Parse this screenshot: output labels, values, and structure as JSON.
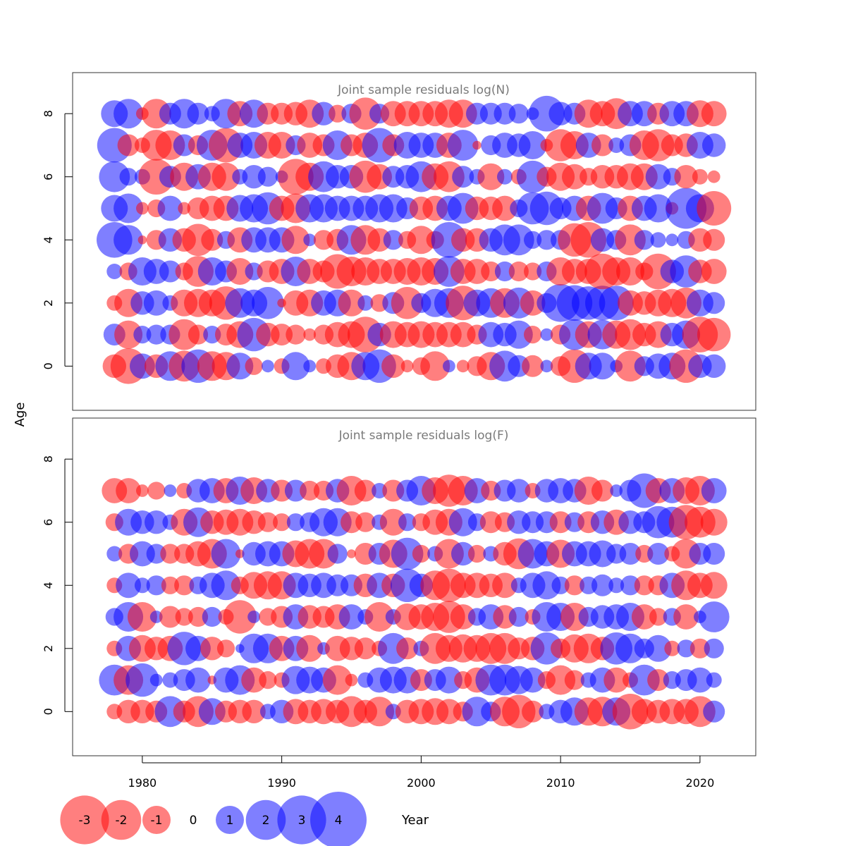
{
  "chart_data": {
    "type": "scatter",
    "subtype": "bubble",
    "xlabel": "Year",
    "ylabel": "Age",
    "xlim": [
      1975,
      2024
    ],
    "x_ticks": [
      1980,
      1990,
      2000,
      2010,
      2020
    ],
    "colors": {
      "positive": "#0000ff",
      "negative": "#ff0000",
      "opacity": 0.5
    },
    "legend": {
      "placement": "bottom-left",
      "items": [
        {
          "label": "-3",
          "value": -3
        },
        {
          "label": "-2",
          "value": -2
        },
        {
          "label": "-1",
          "value": -1
        },
        {
          "label": "0",
          "value": 0
        },
        {
          "label": "1",
          "value": 1
        },
        {
          "label": "2",
          "value": 2
        },
        {
          "label": "3",
          "value": 3
        },
        {
          "label": "4",
          "value": 4
        }
      ]
    },
    "panels": [
      {
        "title": "Joint sample residuals log(N)",
        "ylim": [
          -1.4,
          9.3
        ],
        "y_ticks": [
          0,
          2,
          4,
          6,
          8
        ],
        "years": [
          1978,
          1979,
          1980,
          1981,
          1982,
          1983,
          1984,
          1985,
          1986,
          1987,
          1988,
          1989,
          1990,
          1991,
          1992,
          1993,
          1994,
          1995,
          1996,
          1997,
          1998,
          1999,
          2000,
          2001,
          2002,
          2003,
          2004,
          2005,
          2006,
          2007,
          2008,
          2009,
          2010,
          2011,
          2012,
          2013,
          2014,
          2015,
          2016,
          2017,
          2018,
          2019,
          2020,
          2021
        ],
        "ages": [
          0,
          1,
          2,
          3,
          4,
          5,
          6,
          7,
          8
        ],
        "residuals": [
          [
            -0.7,
            -1.6,
            0.8,
            -0.7,
            1.1,
            -1.2,
            1.4,
            -1.1,
            -1.0,
            0.9,
            -0.4,
            0.2,
            -0.3,
            1.0,
            0.2,
            -0.3,
            -0.7,
            -1.0,
            1.0,
            1.4,
            -0.7,
            -0.2,
            -0.4,
            -1.1,
            0.2,
            -0.2,
            -0.5,
            -1.0,
            1.2,
            0.6,
            -0.6,
            0.2,
            -0.5,
            -1.4,
            0.9,
            0.9,
            0.2,
            -1.2,
            0.5,
            0.8,
            0.9,
            -1.4,
            0.7,
            0.7
          ],
          [
            0.6,
            -1.0,
            0.4,
            0.5,
            0.5,
            -1.2,
            -0.5,
            0.4,
            -0.6,
            -0.9,
            1.4,
            -0.7,
            -0.6,
            -0.5,
            -0.2,
            -0.5,
            -0.8,
            -0.9,
            -1.6,
            0.7,
            -0.9,
            -0.8,
            -0.9,
            -0.8,
            -0.8,
            -0.8,
            -0.5,
            0.8,
            0.7,
            1.0,
            -0.4,
            0.2,
            -0.5,
            1.2,
            -0.9,
            1.1,
            -1.0,
            -1.2,
            -0.7,
            -0.9,
            0.7,
            1.0,
            -1.6,
            -1.4
          ],
          [
            -0.3,
            -1.0,
            0.7,
            0.8,
            0.3,
            -0.9,
            -1.0,
            -0.9,
            -1.4,
            1.1,
            0.9,
            1.3,
            -0.1,
            -0.8,
            -0.9,
            0.8,
            0.9,
            -0.9,
            0.3,
            -0.4,
            0.6,
            -1.3,
            0.5,
            1.0,
            1.1,
            -1.5,
            0.9,
            1.1,
            -1.1,
            1.2,
            -0.8,
            0.5,
            1.8,
            1.6,
            1.4,
            1.5,
            1.5,
            -0.8,
            -0.7,
            -0.9,
            -1.0,
            -1.2,
            0.9,
            0.6
          ],
          [
            0.3,
            -0.4,
            1.0,
            0.8,
            0.6,
            -0.4,
            -1.2,
            1.0,
            0.6,
            -0.9,
            0.4,
            -0.6,
            -0.8,
            1.1,
            -0.8,
            -0.6,
            -1.5,
            -1.1,
            -1.0,
            -0.8,
            -0.8,
            -0.9,
            -1.0,
            -0.9,
            1.2,
            -0.8,
            -0.8,
            -0.5,
            0.5,
            -0.5,
            -0.4,
            0.5,
            -1.0,
            -0.8,
            -0.8,
            -1.6,
            -1.0,
            -1.0,
            -0.4,
            -1.6,
            0.7,
            1.3,
            -0.7,
            -0.8
          ],
          [
            1.6,
            1.1,
            -0.1,
            -0.5,
            0.7,
            -0.7,
            -1.3,
            -0.6,
            0.4,
            -0.8,
            0.8,
            0.8,
            0.8,
            -1.0,
            0.2,
            -0.5,
            -0.6,
            1.1,
            -1.1,
            -0.7,
            0.5,
            -0.4,
            -1.0,
            -0.4,
            1.6,
            -0.7,
            -0.7,
            0.7,
            1.2,
            1.2,
            0.4,
            0.5,
            0.5,
            -1.4,
            -1.6,
            0.7,
            0.5,
            -1.2,
            0.5,
            0.3,
            0.2,
            0.4,
            -0.7,
            -0.6
          ],
          [
            0.9,
            1.1,
            -0.2,
            -0.4,
            0.8,
            -0.2,
            -0.6,
            -0.8,
            -0.8,
            0.9,
            1.0,
            1.3,
            -0.8,
            -1.1,
            1.0,
            1.0,
            0.8,
            0.8,
            0.8,
            1.0,
            1.0,
            0.6,
            -0.7,
            -0.8,
            0.8,
            1.2,
            -0.7,
            -0.7,
            -0.8,
            0.4,
            1.3,
            1.4,
            0.6,
            0.8,
            -0.8,
            1.2,
            0.6,
            -0.8,
            0.8,
            1.0,
            -0.2,
            2.1,
            1.0,
            -1.5
          ],
          [
            1.2,
            0.4,
            0.3,
            -1.6,
            0.6,
            -1.0,
            0.8,
            -1.0,
            -1.0,
            0.3,
            0.7,
            0.5,
            0.2,
            -1.6,
            -1.0,
            1.2,
            0.7,
            0.7,
            -1.3,
            -0.8,
            0.6,
            0.7,
            1.2,
            -0.9,
            -1.2,
            0.6,
            0.3,
            -0.9,
            0.3,
            -0.3,
            1.3,
            -0.5,
            -1.0,
            -0.8,
            -0.4,
            -0.7,
            -0.7,
            -0.9,
            -0.9,
            0.8,
            0.4,
            -0.7,
            -0.3,
            -0.2
          ],
          [
            1.5,
            -0.6,
            -0.3,
            -1.2,
            -1.1,
            0.6,
            -0.5,
            1.2,
            -1.5,
            0.8,
            0.9,
            -0.9,
            -0.9,
            0.5,
            -0.8,
            -0.6,
            1.1,
            -0.6,
            -0.8,
            1.5,
            -0.6,
            0.9,
            0.8,
            0.8,
            -0.8,
            1.2,
            -0.1,
            0.5,
            0.8,
            0.7,
            1.0,
            -0.2,
            -1.3,
            -1.0,
            0.8,
            -0.6,
            0.3,
            0.6,
            -1.1,
            -1.3,
            -0.6,
            -0.7,
            0.9,
            0.7
          ],
          [
            0.9,
            1.1,
            -0.2,
            -1.1,
            0.6,
            1.1,
            0.6,
            0.3,
            1.1,
            -0.8,
            1.0,
            -0.6,
            -0.6,
            -0.7,
            -1.0,
            0.7,
            -0.4,
            0.5,
            -1.3,
            0.5,
            -0.8,
            -0.8,
            -0.8,
            -0.8,
            -1.0,
            -1.0,
            0.6,
            0.6,
            0.6,
            0.5,
            0.2,
            1.6,
            0.7,
            0.6,
            -1.0,
            -0.8,
            -1.2,
            0.8,
            0.8,
            -0.6,
            0.8,
            0.8,
            -0.9,
            -0.8
          ]
        ]
      },
      {
        "title": "Joint sample residuals log(F)",
        "ylim": [
          -1.4,
          9.3
        ],
        "y_ticks": [
          0,
          2,
          4,
          6,
          8
        ],
        "years": [
          1978,
          1979,
          1980,
          1981,
          1982,
          1983,
          1984,
          1985,
          1986,
          1987,
          1988,
          1989,
          1990,
          1991,
          1992,
          1993,
          1994,
          1995,
          1996,
          1997,
          1998,
          1999,
          2000,
          2001,
          2002,
          2003,
          2004,
          2005,
          2006,
          2007,
          2008,
          2009,
          2010,
          2011,
          2012,
          2013,
          2014,
          2015,
          2016,
          2017,
          2018,
          2019,
          2020,
          2021
        ],
        "ages": [
          0,
          1,
          2,
          3,
          4,
          5,
          6,
          7
        ],
        "residuals": [
          [
            -0.3,
            -0.7,
            -0.7,
            -0.6,
            1.2,
            -0.6,
            -1.2,
            0.9,
            -0.6,
            -0.7,
            -0.7,
            0.3,
            0.7,
            -0.8,
            -0.7,
            -0.8,
            -0.7,
            -1.2,
            -0.7,
            -1.1,
            0.3,
            -0.7,
            -0.8,
            -0.9,
            -0.8,
            -0.5,
            1.1,
            0.5,
            -1.1,
            -1.4,
            -0.6,
            0.3,
            0.7,
            1.0,
            -1.0,
            -1.1,
            1.0,
            -1.6,
            -0.8,
            -0.7,
            -0.8,
            -0.8,
            -1.2,
            0.6
          ],
          [
            1.2,
            -1.1,
            1.4,
            0.2,
            0.3,
            0.6,
            0.8,
            -0.1,
            0.8,
            1.1,
            -0.8,
            -0.4,
            -0.3,
            1.0,
            0.9,
            0.8,
            -1.1,
            -0.2,
            0.3,
            0.8,
            0.9,
            0.9,
            -0.6,
            0.6,
            0.9,
            -0.4,
            -0.8,
            1.2,
            1.2,
            1.0,
            0.8,
            -0.4,
            -1.1,
            -0.5,
            0.3,
            0.8,
            -0.8,
            -0.3,
            1.2,
            -0.6,
            0.4,
            0.6,
            0.8,
            0.3
          ],
          [
            -0.3,
            0.8,
            -0.9,
            -0.7,
            -0.8,
            1.4,
            0.8,
            -0.7,
            -0.4,
            0.1,
            1.1,
            1.1,
            -0.8,
            0.8,
            -0.9,
            0.2,
            -0.8,
            -0.7,
            -0.6,
            -0.3,
            1.2,
            -0.6,
            0.3,
            -1.2,
            -0.9,
            -1.0,
            -0.9,
            -1.2,
            -1.2,
            -0.6,
            -0.7,
            1.3,
            -0.5,
            -1.0,
            -1.1,
            -0.7,
            1.3,
            1.1,
            0.5,
            0.9,
            -0.3,
            0.4,
            -0.5,
            0.5
          ],
          [
            0.4,
            1.1,
            -1.1,
            0.2,
            -0.6,
            -0.4,
            -0.5,
            0.5,
            -0.3,
            -1.4,
            0.2,
            -0.4,
            -0.6,
            0.8,
            -0.7,
            -0.6,
            -0.8,
            0.8,
            0.3,
            -1.1,
            0.3,
            -0.9,
            -0.8,
            -1.0,
            -1.3,
            -0.8,
            0.4,
            0.8,
            -0.7,
            0.5,
            -0.3,
            1.1,
            1.0,
            -1.0,
            0.5,
            0.7,
            0.8,
            1.0,
            -0.8,
            -0.4,
            0.4,
            -0.8,
            0.2,
            1.2
          ],
          [
            -0.3,
            0.8,
            0.3,
            0.5,
            -0.4,
            -0.5,
            0.4,
            0.8,
            1.1,
            -0.4,
            -0.9,
            -1.0,
            -1.0,
            0.8,
            0.7,
            0.8,
            0.6,
            0.6,
            -0.7,
            0.8,
            -0.7,
            1.4,
            0.7,
            -1.1,
            -1.4,
            -0.8,
            -0.8,
            -0.7,
            -0.8,
            0.3,
            0.8,
            1.0,
            0.4,
            -0.5,
            0.4,
            0.6,
            0.3,
            0.5,
            -0.5,
            -0.5,
            0.8,
            -1.1,
            -0.8,
            -0.9
          ],
          [
            0.3,
            -0.5,
            0.8,
            0.5,
            -0.5,
            -0.5,
            -0.8,
            -1.1,
            1.1,
            -0.1,
            0.7,
            0.8,
            0.8,
            -0.9,
            -1.1,
            -1.1,
            0.5,
            -0.1,
            -0.6,
            0.6,
            -1.0,
            1.3,
            -0.4,
            0.3,
            -1.1,
            0.7,
            -0.4,
            0.3,
            -0.7,
            -1.2,
            1.1,
            0.8,
            -1.0,
            0.8,
            0.8,
            0.9,
            0.5,
            0.6,
            -0.4,
            0.6,
            -0.3,
            -1.1,
            0.6,
            0.6
          ],
          [
            -0.4,
            0.9,
            0.7,
            0.7,
            0.3,
            -0.9,
            1.1,
            -0.7,
            -0.8,
            -0.9,
            -0.7,
            -0.5,
            -0.4,
            0.4,
            0.5,
            1.0,
            1.0,
            -0.6,
            -0.5,
            0.3,
            -0.9,
            0.4,
            -0.4,
            -0.8,
            -0.9,
            1.0,
            0.4,
            -0.6,
            -0.5,
            0.7,
            0.6,
            0.6,
            -0.6,
            0.5,
            -0.6,
            0.7,
            -0.8,
            0.7,
            0.6,
            1.3,
            1.2,
            -1.5,
            -1.2,
            -0.9
          ],
          [
            -0.8,
            -0.8,
            -0.2,
            -0.4,
            0.2,
            -0.3,
            0.7,
            0.8,
            -0.8,
            1.0,
            -0.9,
            0.7,
            -0.6,
            0.6,
            -0.5,
            -0.5,
            0.7,
            -1.1,
            -0.6,
            0.3,
            -0.6,
            0.6,
            1.1,
            -0.9,
            -1.3,
            -1.1,
            0.8,
            -0.5,
            0.6,
            0.7,
            -0.3,
            0.7,
            0.8,
            0.7,
            -1.0,
            -0.6,
            0.2,
            0.6,
            1.5,
            -0.8,
            0.8,
            -0.9,
            -1.1,
            0.8
          ]
        ]
      }
    ]
  }
}
